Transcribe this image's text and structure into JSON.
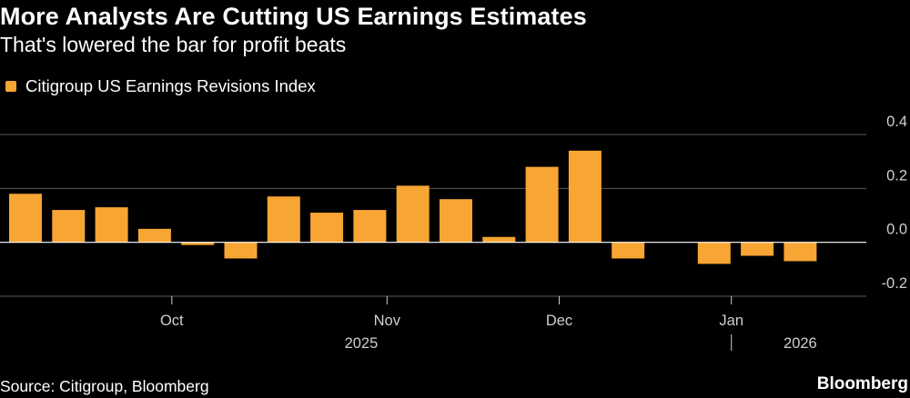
{
  "colors": {
    "background": "#000000",
    "text": "#ffffff",
    "bar": "#f7a533",
    "grid": "#5a5a5a",
    "zero_line": "#ffffff",
    "axis_text": "#cfcfcf"
  },
  "chart_data": {
    "type": "bar",
    "title": "More Analysts Are Cutting US Earnings Estimates",
    "subtitle": "That's lowered the bar for profit beats",
    "series": [
      {
        "name": "Citigroup US Earnings Revisions Index",
        "values": [
          0.18,
          0.12,
          0.13,
          0.05,
          -0.01,
          -0.06,
          0.17,
          0.11,
          0.12,
          0.21,
          0.16,
          0.02,
          0.28,
          0.34,
          -0.06,
          null,
          -0.08,
          -0.05,
          -0.07
        ]
      }
    ],
    "ylim": [
      -0.2,
      0.4
    ],
    "yticks": [
      0.4,
      0.2,
      0.0,
      -0.2
    ],
    "ytick_labels": [
      "0.4",
      "0.2",
      "0.0",
      "-0.2"
    ],
    "xaxis": {
      "months": [
        {
          "label": "Oct",
          "index": 3.4
        },
        {
          "label": "Nov",
          "index": 8.4
        },
        {
          "label": "Dec",
          "index": 12.4
        },
        {
          "label": "Jan",
          "index": 16.4
        }
      ],
      "years": [
        {
          "label": "2025",
          "index": 7.8
        },
        {
          "label": "2026",
          "index": 18.0
        }
      ],
      "year_divider_index": 16.4
    },
    "xlabel": "",
    "ylabel": ""
  },
  "footer": {
    "source": "Source: Citigroup, Bloomberg",
    "brand": "Bloomberg"
  }
}
